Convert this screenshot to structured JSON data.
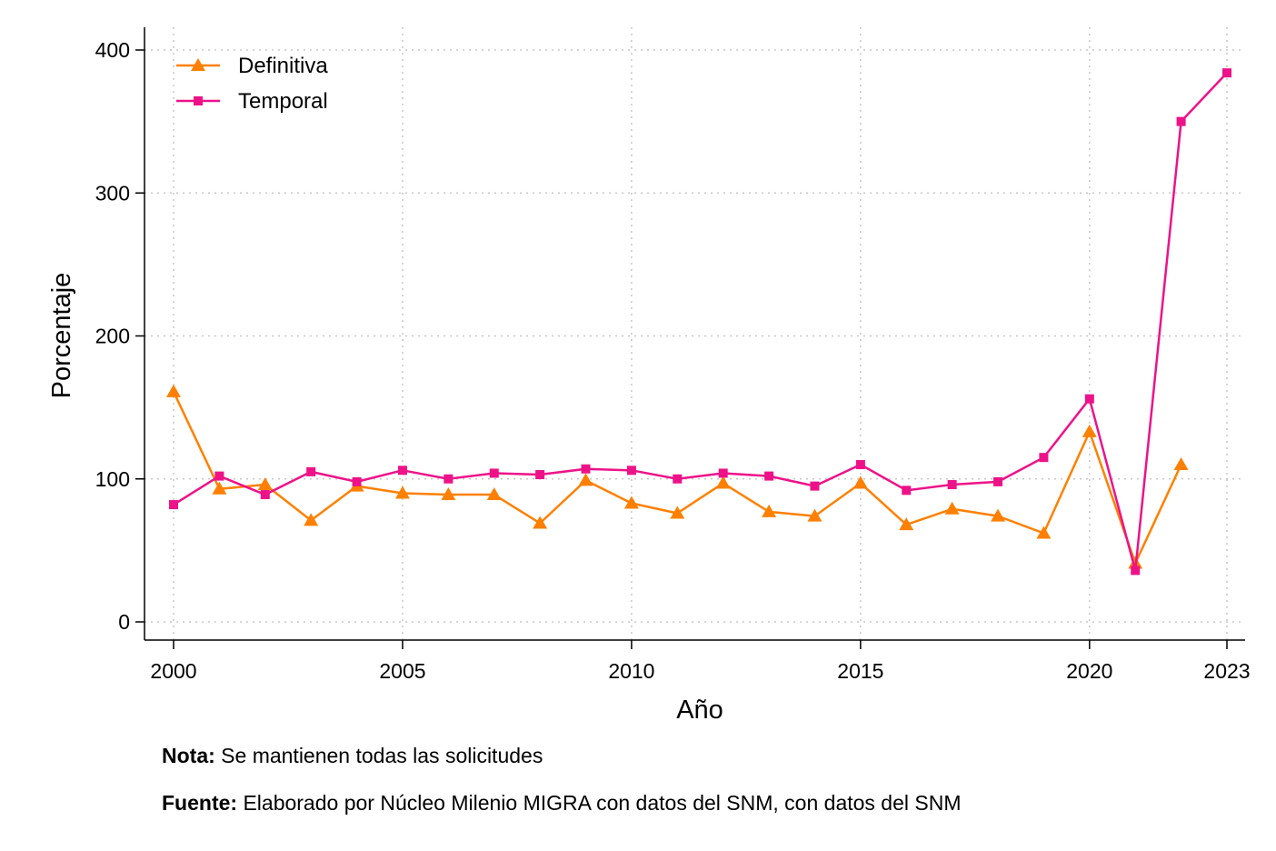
{
  "chart_data": {
    "type": "line",
    "xlabel": "Año",
    "ylabel": "Porcentaje",
    "xlim": [
      2000,
      2023
    ],
    "ylim": [
      0,
      400
    ],
    "x_ticks": [
      2000,
      2005,
      2010,
      2015,
      2020,
      2023
    ],
    "y_ticks": [
      0,
      100,
      200,
      300,
      400
    ],
    "grid": true,
    "legend_position": "top-left",
    "x": [
      2000,
      2001,
      2002,
      2003,
      2004,
      2005,
      2006,
      2007,
      2008,
      2009,
      2010,
      2011,
      2012,
      2013,
      2014,
      2015,
      2016,
      2017,
      2018,
      2019,
      2020,
      2021,
      2022,
      2023
    ],
    "series": [
      {
        "name": "Definitiva",
        "color": "#ff8000",
        "marker": "triangle",
        "values": [
          161,
          93,
          96,
          71,
          95,
          90,
          89,
          89,
          69,
          99,
          83,
          76,
          97,
          77,
          74,
          97,
          68,
          79,
          74,
          62,
          133,
          41,
          110,
          null
        ]
      },
      {
        "name": "Temporal",
        "color": "#ee1289",
        "marker": "square",
        "values": [
          82,
          102,
          89,
          105,
          98,
          106,
          100,
          104,
          103,
          107,
          106,
          100,
          104,
          102,
          95,
          110,
          92,
          96,
          98,
          115,
          156,
          36,
          350,
          384
        ]
      }
    ]
  },
  "notes": {
    "nota_label": "Nota:",
    "nota_text": " Se mantienen todas las solicitudes",
    "fuente_label": "Fuente:",
    "fuente_text": " Elaborado por Núcleo Milenio MIGRA con datos del SNM, con datos del SNM"
  }
}
